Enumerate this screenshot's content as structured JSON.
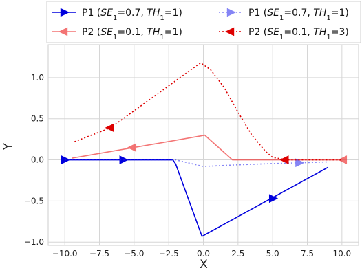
{
  "chart_data": {
    "type": "line",
    "xlabel": "X",
    "ylabel": "Y",
    "xlim": [
      -11.2,
      11.2
    ],
    "ylim": [
      -1.04,
      1.4
    ],
    "xticks": [
      -10,
      -7.5,
      -5,
      -2.5,
      0,
      2.5,
      5,
      7.5,
      10
    ],
    "xtick_labels": [
      "−10.0",
      "−7.5",
      "−5.0",
      "−2.5",
      "0.0",
      "2.5",
      "5.0",
      "7.5",
      "10.0"
    ],
    "yticks": [
      -1,
      -0.5,
      0,
      0.5,
      1
    ],
    "ytick_labels": [
      "−1.0",
      "−0.5",
      "0.0",
      "0.5",
      "1.0"
    ],
    "grid": true,
    "legend_placement": "top",
    "series": [
      {
        "name_parts": [
          [
            "P1 (",
            "n"
          ],
          [
            "SE",
            "i"
          ],
          [
            "1",
            "sub"
          ],
          [
            "=0.7, ",
            "n"
          ],
          [
            "TH",
            "i"
          ],
          [
            "1",
            "sub"
          ],
          [
            "=1)",
            "n"
          ]
        ],
        "color": "#0000dd",
        "opacity": 1,
        "dash": "solid",
        "marker": "right",
        "x": [
          -10,
          -2.2,
          -2,
          -0.1,
          9
        ],
        "y": [
          0,
          0,
          -0.05,
          -0.93,
          -0.09
        ],
        "markers": [
          [
            -10,
            0
          ],
          [
            -5.8,
            0
          ],
          [
            5,
            -0.47
          ]
        ]
      },
      {
        "name_parts": [
          [
            "P2 (",
            "n"
          ],
          [
            "SE",
            "i"
          ],
          [
            "1",
            "sub"
          ],
          [
            "=0.1, ",
            "n"
          ],
          [
            "TH",
            "i"
          ],
          [
            "1",
            "sub"
          ],
          [
            "=1)",
            "n"
          ]
        ],
        "color": "#ee3a3a",
        "opacity": 0.7,
        "dash": "solid",
        "marker": "left",
        "x": [
          -9.5,
          -0.2,
          0.1,
          2.1,
          10.1
        ],
        "y": [
          0.02,
          0.29,
          0.3,
          0,
          0
        ],
        "markers": [
          [
            -5.1,
            0.15
          ],
          [
            10.1,
            0
          ]
        ]
      },
      {
        "name_parts": [
          [
            "P1 (",
            "n"
          ],
          [
            "SE",
            "i"
          ],
          [
            "1",
            "sub"
          ],
          [
            "=0.7, ",
            "n"
          ],
          [
            "TH",
            "i"
          ],
          [
            "1",
            "sub"
          ],
          [
            "=1)",
            "n"
          ]
        ],
        "color": "#2222ee",
        "opacity": 0.55,
        "dash": "dotted",
        "marker": "right",
        "x": [
          -10,
          -2,
          0,
          2.5,
          5,
          7,
          9
        ],
        "y": [
          0,
          0,
          -0.08,
          -0.06,
          -0.045,
          -0.035,
          -0.025
        ],
        "markers": [
          [
            6.9,
            -0.035
          ]
        ]
      },
      {
        "name_parts": [
          [
            "P2 (",
            "n"
          ],
          [
            "SE",
            "i"
          ],
          [
            "1",
            "sub"
          ],
          [
            "=0.1, ",
            "n"
          ],
          [
            "TH",
            "i"
          ],
          [
            "1",
            "sub"
          ],
          [
            "=3)",
            "n"
          ]
        ],
        "color": "#dd0000",
        "opacity": 1,
        "dash": "dotted",
        "marker": "left",
        "x": [
          -9.3,
          -6.7,
          -0.2,
          0.5,
          1.5,
          2.5,
          3.5,
          4.5,
          5,
          6,
          10
        ],
        "y": [
          0.22,
          0.39,
          1.18,
          1.1,
          0.88,
          0.58,
          0.3,
          0.1,
          0.03,
          0,
          0
        ],
        "markers": [
          [
            -6.7,
            0.39
          ],
          [
            5.9,
            0
          ]
        ]
      }
    ]
  }
}
